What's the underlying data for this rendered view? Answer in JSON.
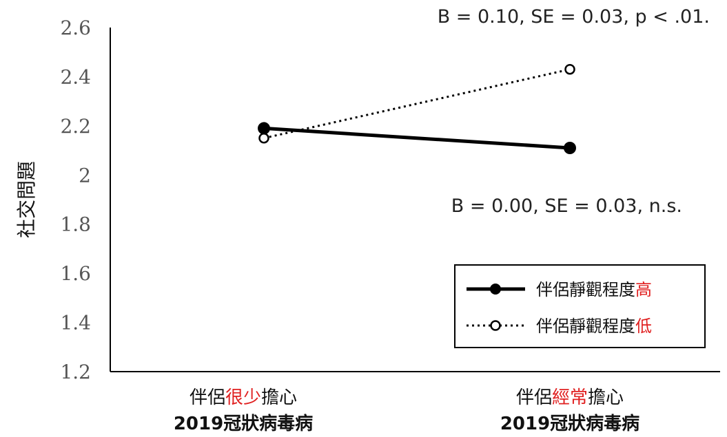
{
  "chart_data": {
    "type": "line",
    "ylabel": "社交問題",
    "ylim": [
      1.2,
      2.6
    ],
    "yticks": [
      "1.2",
      "1.4",
      "1.6",
      "1.8",
      "2",
      "2.2",
      "2.4",
      "2.6"
    ],
    "categories": [
      {
        "line1_prefix": "伴侶",
        "line1_highlight": "很少",
        "line1_suffix": "擔心",
        "line2": "2019冠狀病毒病"
      },
      {
        "line1_prefix": "伴侶",
        "line1_highlight": "經常",
        "line1_suffix": "擔心",
        "line2": "2019冠狀病毒病"
      }
    ],
    "series": [
      {
        "name_prefix": "伴侶靜觀程度",
        "name_highlight": "高",
        "values": [
          2.19,
          2.11
        ],
        "style": "solid",
        "marker": "filled"
      },
      {
        "name_prefix": "伴侶靜觀程度",
        "name_highlight": "低",
        "values": [
          2.15,
          2.43
        ],
        "style": "dotted",
        "marker": "open"
      }
    ],
    "annotations": [
      {
        "text": "B = 0.10, SE = 0.03, p < .01."
      },
      {
        "text": "B = 0.00, SE = 0.03, n.s."
      }
    ],
    "legend_position": "bottom-right",
    "colors": {
      "line": "#000000",
      "highlight": "#e02020",
      "tick_text": "#555555"
    }
  }
}
